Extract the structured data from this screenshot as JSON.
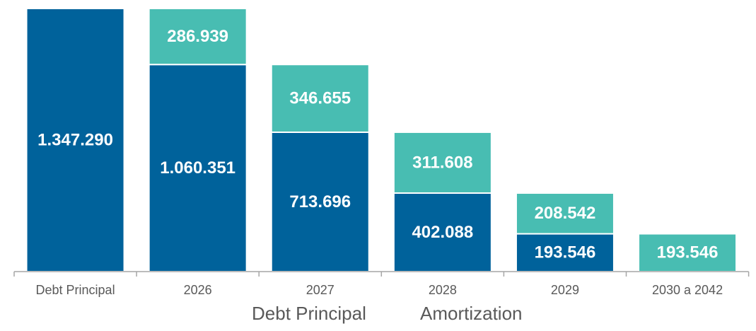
{
  "chart_data": {
    "type": "bar",
    "subtype": "stacked-waterfall",
    "categories": [
      "Debt Principal",
      "2026",
      "2027",
      "2028",
      "2029",
      "2030 a 2042"
    ],
    "series": [
      {
        "name": "Debt Principal",
        "color": "#00629B",
        "values": [
          1347290,
          1060351,
          713696,
          402088,
          193546,
          0
        ],
        "labels": [
          "1.347.290",
          "1.060.351",
          "713.696",
          "402.088",
          "193.546",
          ""
        ]
      },
      {
        "name": "Amortization",
        "color": "#48BDB2",
        "values": [
          0,
          286939,
          346655,
          311608,
          208542,
          193546
        ],
        "labels": [
          "",
          "286.939",
          "346.655",
          "311.608",
          "208.542",
          "193.546"
        ]
      }
    ],
    "title": "",
    "xlabel": "",
    "ylabel": "",
    "ylim": [
      0,
      1347290
    ],
    "grid": false,
    "legend_position": "bottom"
  }
}
